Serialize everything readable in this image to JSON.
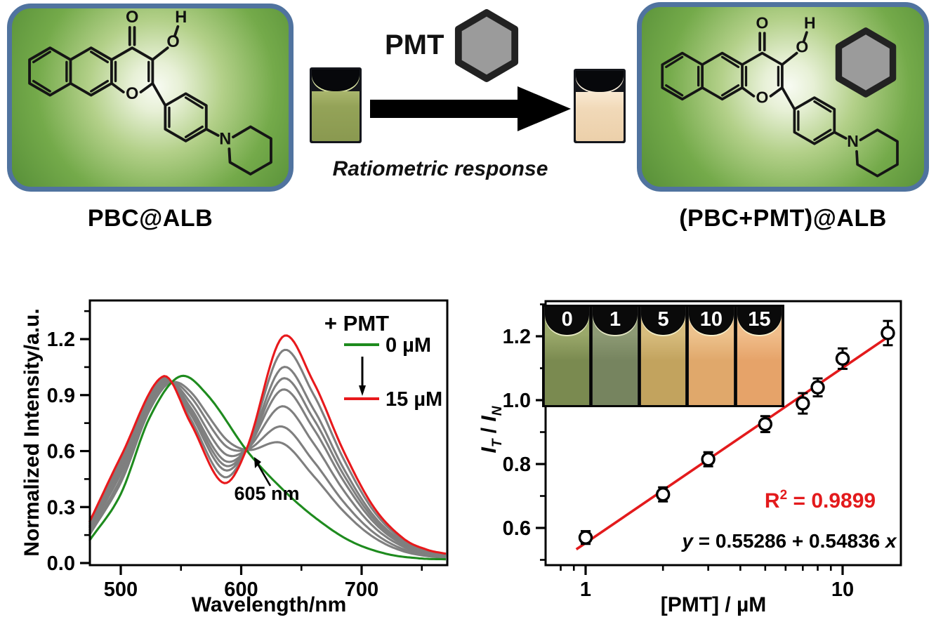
{
  "scheme": {
    "left_panel_label": "PBC@ALB",
    "right_panel_label": "(PBC+PMT)@ALB",
    "pmt_label": "PMT",
    "arrow_caption": "Ratiometric response",
    "molecule_atoms": {
      "carbonyl_o": "O",
      "hydroxyl_o": "O",
      "hydroxyl_h": "H",
      "ring_o": "O",
      "amine_n": "N"
    },
    "colors": {
      "panel_border": "#50739f",
      "hexagon_fill": "#9b9b9b",
      "hexagon_stroke": "#222222",
      "left_cuvette_liquid": "#94a358",
      "left_cuvette_meniscus": "#dde8a6",
      "right_cuvette_liquid": "#f1d9b8",
      "right_cuvette_meniscus": "#fdf2de"
    }
  },
  "chart_data": [
    {
      "id": "spectra",
      "type": "line",
      "title": "",
      "xlabel": "Wavelength/nm",
      "ylabel": "Normalized Intensity/a.u.",
      "xlim": [
        474,
        771
      ],
      "ylim": [
        -0.01,
        1.41
      ],
      "xticks": [
        500,
        600,
        700
      ],
      "xtick_labels": [
        "500",
        "600",
        "700"
      ],
      "xminor": [
        550,
        650,
        750
      ],
      "yticks": [
        0.0,
        0.3,
        0.6,
        0.9,
        1.2
      ],
      "ytick_labels": [
        "0.0",
        "0.3",
        "0.6",
        "0.9",
        "1.2"
      ],
      "yminor": [
        0.15,
        0.45,
        0.75,
        1.05,
        1.35
      ],
      "grid": false,
      "legend_position": "upper right",
      "legend_title": "+ PMT",
      "legend_first_label": "0 µM",
      "legend_last_label": "15 µM",
      "annotation_text": "605 nm",
      "isosbestic_point": {
        "wavelength_nm": 605,
        "intensity": 0.6
      },
      "series_concentrations_uM": [
        0,
        1,
        2,
        3,
        5,
        7,
        8,
        10,
        15
      ],
      "second_peak_heights_at_635nm": [
        null,
        0.64,
        0.73,
        0.84,
        0.93,
        0.99,
        1.05,
        1.14,
        1.21
      ],
      "first_peak": {
        "nm_0uM": 549,
        "nm_15uM": 535,
        "height": 1.0
      },
      "second_peak_nm": 634,
      "curve_0uM_points": [
        [
          474,
          0.12
        ],
        [
          500,
          0.37
        ],
        [
          524,
          0.78
        ],
        [
          549,
          1.0
        ],
        [
          572,
          0.9
        ],
        [
          605,
          0.6
        ],
        [
          632,
          0.41
        ],
        [
          660,
          0.25
        ],
        [
          690,
          0.12
        ],
        [
          720,
          0.05
        ],
        [
          748,
          0.025
        ],
        [
          770,
          0.02
        ]
      ],
      "curve_15uM_points": [
        [
          474,
          0.22
        ],
        [
          500,
          0.57
        ],
        [
          535,
          1.0
        ],
        [
          558,
          0.75
        ],
        [
          585,
          0.43
        ],
        [
          605,
          0.62
        ],
        [
          634,
          1.21
        ],
        [
          660,
          0.97
        ],
        [
          685,
          0.6
        ],
        [
          710,
          0.3
        ],
        [
          735,
          0.13
        ],
        [
          755,
          0.07
        ],
        [
          770,
          0.05
        ]
      ],
      "colors": {
        "first": "#1e8b1e",
        "middle": "#7f7f7f",
        "last": "#e8191c",
        "axis": "#000000"
      }
    },
    {
      "id": "calibration",
      "type": "scatter",
      "xlabel": "[PMT] / µM",
      "ylabel_parts": {
        "num": "I",
        "num_sub": "T",
        "slash": " / ",
        "den": "I",
        "den_sub": "N"
      },
      "xscale": "log",
      "xlim": [
        0.7,
        16.9
      ],
      "ylim": [
        0.483,
        1.31
      ],
      "xticks": [
        1,
        10
      ],
      "xtick_labels": [
        "1",
        "10"
      ],
      "xminor": [
        0.8,
        0.9,
        2,
        3,
        4,
        5,
        6,
        7,
        8,
        9
      ],
      "yticks": [
        0.6,
        0.8,
        1.0,
        1.2
      ],
      "ytick_labels": [
        "0.6",
        "0.8",
        "1.0",
        "1.2"
      ],
      "yminor": [
        0.5,
        0.7,
        0.9,
        1.1,
        1.3
      ],
      "points": {
        "x": [
          1,
          2,
          3,
          5,
          7,
          8,
          10,
          15
        ],
        "y": [
          0.57,
          0.705,
          0.815,
          0.925,
          0.99,
          1.04,
          1.13,
          1.21
        ],
        "yerr": [
          0.02,
          0.022,
          0.022,
          0.025,
          0.032,
          0.028,
          0.032,
          0.038
        ]
      },
      "fit": {
        "intercept": 0.55286,
        "slope": 0.54836,
        "x_start": 0.92,
        "x_end": 15.7,
        "color": "#e31a1c"
      },
      "r_squared": {
        "base": "R",
        "sup": "2",
        "rest": " = 0.9899",
        "color": "#e31a1c"
      },
      "equation": {
        "var_y": "y",
        "mid": " = 0.55286 + 0.54836 ",
        "var_x": "x"
      },
      "inset_cuvettes": {
        "labels": [
          "0",
          "1",
          "5",
          "10",
          "15"
        ],
        "body_colors": [
          "#7a8a50",
          "#76845f",
          "#c2a35e",
          "#e0a86b",
          "#e6a369"
        ],
        "top_colors": [
          "#9aa86a",
          "#8d9a74",
          "#d7bc7d",
          "#edc28d",
          "#f0bd8a"
        ]
      }
    }
  ]
}
